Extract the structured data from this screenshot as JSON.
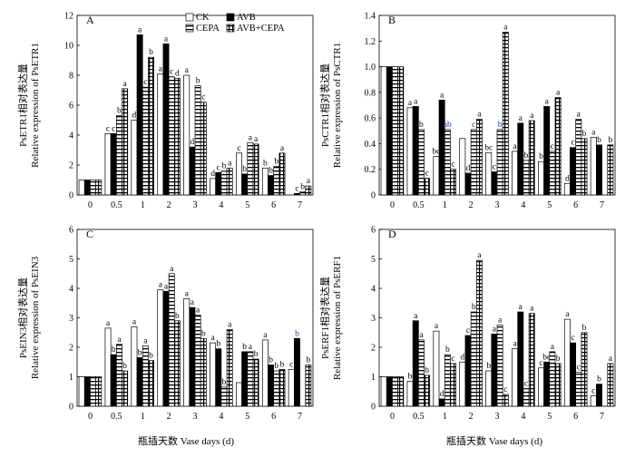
{
  "chart_data": [
    {
      "type": "bar",
      "panel": "A",
      "categories": [
        "0",
        "0.5",
        "1",
        "2",
        "3",
        "4",
        "5",
        "6",
        "7"
      ],
      "ylabel_cn": "PsETR1相对表达量",
      "ylabel_en": "Relative expression of PsETR1",
      "ylim": [
        0,
        12
      ],
      "yticks": [
        "0",
        "2",
        "4",
        "6",
        "8",
        "10",
        "12"
      ],
      "legend": [
        "CK",
        "AVB",
        "CEPA",
        "AVB+CEPA"
      ],
      "legend_position": "top-center",
      "series": [
        {
          "name": "CK",
          "values": [
            1.0,
            4.1,
            5.0,
            8.1,
            8.0,
            1.1,
            2.8,
            1.8,
            null
          ],
          "letters": [
            "",
            "c",
            "d",
            "a",
            "a",
            "d",
            "c",
            "b",
            ""
          ]
        },
        {
          "name": "AVB",
          "values": [
            1.0,
            4.1,
            10.7,
            10.1,
            3.2,
            1.5,
            1.4,
            1.3,
            0.1
          ],
          "letters": [
            "",
            "c",
            "a",
            "a",
            "d",
            "c",
            "b",
            "b",
            "c"
          ]
        },
        {
          "name": "CEPA",
          "values": [
            1.0,
            5.3,
            7.2,
            7.9,
            7.3,
            1.6,
            3.5,
            1.9,
            0.2
          ],
          "letters": [
            "",
            "b",
            "c",
            "c",
            "b",
            "b",
            "a",
            "b",
            "b"
          ]
        },
        {
          "name": "AVB+CEPA",
          "values": [
            1.0,
            7.1,
            9.2,
            7.8,
            6.2,
            1.8,
            3.4,
            2.8,
            0.6
          ],
          "letters": [
            "",
            "a",
            "b",
            "d",
            "c",
            "a",
            "a",
            "a",
            "a"
          ]
        }
      ]
    },
    {
      "type": "bar",
      "panel": "B",
      "categories": [
        "0",
        "0.5",
        "1",
        "2",
        "3",
        "4",
        "5",
        "6",
        "7"
      ],
      "ylabel_cn": "PsCTR1相对表达量",
      "ylabel_en": "Relative expression of PsCTR1",
      "ylim": [
        0,
        1.4
      ],
      "yticks": [
        "0",
        "0.2",
        "0.4",
        "0.6",
        "0.8",
        "1.0",
        "1.2",
        "1.4"
      ],
      "series": [
        {
          "name": "CK",
          "values": [
            1.0,
            0.68,
            0.3,
            0.44,
            0.33,
            0.34,
            0.26,
            0.09,
            0.45
          ],
          "letters": [
            "",
            "a",
            "bc",
            "",
            "bc",
            "a",
            "b",
            "d",
            "a"
          ]
        },
        {
          "name": "AVB",
          "values": [
            1.0,
            0.69,
            0.74,
            0.17,
            0.18,
            0.56,
            0.69,
            0.37,
            0.39
          ],
          "letters": [
            "",
            "a",
            "a",
            "d",
            "c",
            "a",
            "a",
            "c",
            "b"
          ]
        },
        {
          "name": "CEPA",
          "values": [
            1.0,
            0.51,
            0.51,
            0.51,
            0.51,
            0.27,
            0.34,
            0.59,
            null
          ],
          "letters": [
            "",
            "b",
            "ab",
            "c",
            "b",
            "b",
            "c",
            "a",
            ""
          ]
        },
        {
          "name": "AVB+CEPA",
          "values": [
            1.0,
            0.13,
            0.2,
            0.59,
            1.27,
            0.58,
            0.76,
            0.44,
            0.39
          ],
          "letters": [
            "",
            "c",
            "c",
            "a",
            "a",
            "a",
            "a",
            "b",
            "b"
          ]
        }
      ]
    },
    {
      "type": "bar",
      "panel": "C",
      "categories": [
        "0",
        "0.5",
        "1",
        "2",
        "3",
        "4",
        "5",
        "6",
        "7"
      ],
      "ylabel_cn": "PsEIN3相对表达量",
      "ylabel_en": "Relative expression of PsEIN3",
      "ylim": [
        0,
        6
      ],
      "yticks": [
        "0",
        "1",
        "2",
        "3",
        "4",
        "5",
        "6"
      ],
      "series": [
        {
          "name": "CK",
          "values": [
            1.0,
            2.65,
            2.7,
            3.95,
            3.65,
            2.15,
            0.8,
            2.25,
            1.25
          ],
          "letters": [
            "",
            "a",
            "a",
            "a",
            "a",
            "a",
            "",
            "a",
            "c"
          ]
        },
        {
          "name": "AVB",
          "values": [
            1.0,
            1.75,
            1.65,
            3.9,
            3.35,
            1.95,
            1.85,
            1.4,
            2.3
          ],
          "letters": [
            "",
            "b",
            "b",
            "a",
            "a",
            "b",
            "b",
            "b",
            "b"
          ]
        },
        {
          "name": "CEPA",
          "values": [
            1.0,
            2.1,
            2.05,
            4.5,
            3.1,
            0.65,
            1.85,
            1.2,
            null
          ],
          "letters": [
            "",
            "a",
            "a",
            "a",
            "a",
            "b",
            "a",
            "b",
            ""
          ]
        },
        {
          "name": "AVB+CEPA",
          "values": [
            1.0,
            1.2,
            1.55,
            2.9,
            2.3,
            2.6,
            1.6,
            1.25,
            1.4
          ],
          "letters": [
            "",
            "b",
            "b",
            "b",
            "b",
            "a",
            "b",
            "b",
            "b"
          ]
        }
      ]
    },
    {
      "type": "bar",
      "panel": "D",
      "categories": [
        "0",
        "0.5",
        "1",
        "2",
        "3",
        "4",
        "5",
        "6",
        "7"
      ],
      "ylabel_cn": "PsERF1相对表达量",
      "ylabel_en": "Relative expression of PsERF1",
      "ylim": [
        0,
        6
      ],
      "yticks": [
        "0",
        "1",
        "2",
        "3",
        "4",
        "5",
        "6"
      ],
      "series": [
        {
          "name": "CK",
          "values": [
            1.0,
            0.85,
            2.55,
            1.5,
            1.2,
            1.95,
            1.3,
            2.95,
            0.35
          ],
          "letters": [
            "",
            "b",
            "a",
            "d",
            "b",
            "a",
            "c",
            "a",
            "c"
          ]
        },
        {
          "name": "AVB",
          "values": [
            1.0,
            2.9,
            0.25,
            2.4,
            2.45,
            3.2,
            1.5,
            2.15,
            0.75
          ],
          "letters": [
            "",
            "a",
            "d",
            "c",
            "a",
            "a",
            "bc",
            "c",
            "b"
          ]
        },
        {
          "name": "CEPA",
          "values": [
            1.0,
            2.25,
            1.75,
            3.2,
            2.75,
            0.6,
            1.85,
            1.15,
            null
          ],
          "letters": [
            "",
            "a",
            "b",
            "b",
            "a",
            "c",
            "a",
            "c",
            ""
          ]
        },
        {
          "name": "AVB+CEPA",
          "values": [
            1.0,
            1.05,
            1.45,
            4.95,
            0.4,
            3.15,
            1.45,
            2.5,
            1.45
          ],
          "letters": [
            "",
            "b",
            "c",
            "a",
            "c",
            "a",
            "b",
            "b",
            "a"
          ]
        }
      ]
    }
  ],
  "xlabel": "瓶插天数 Vase days (d)",
  "colors": {
    "CK": "#ffffff",
    "AVB": "#000000",
    "CEPA": "#ffffff",
    "AVB+CEPA": "#ffffff",
    "axis": "#000000"
  }
}
